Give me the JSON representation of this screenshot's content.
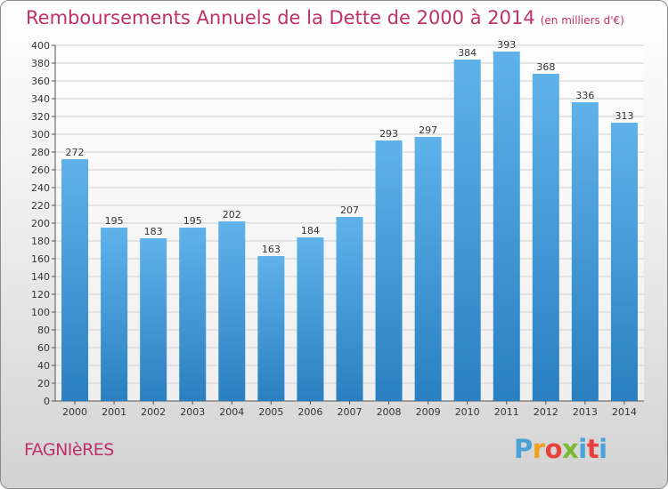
{
  "header": {
    "title": "Remboursements Annuels de la Dette de 2000 à 2014",
    "subtitle": "(en milliers d'€)"
  },
  "footer": {
    "town": "FAGNIèRES",
    "logo": [
      "P",
      "r",
      "o",
      "x",
      "i",
      "t",
      "i"
    ]
  },
  "colors": {
    "title": "#c0306a",
    "bar_light": "#5fb2ea",
    "bar_dark": "#2a7fc0",
    "grid": "#cfcfcf",
    "axis": "#555555"
  },
  "chart_data": {
    "type": "bar",
    "categories": [
      "2000",
      "2001",
      "2002",
      "2003",
      "2004",
      "2005",
      "2006",
      "2007",
      "2008",
      "2009",
      "2010",
      "2011",
      "2012",
      "2013",
      "2014"
    ],
    "values": [
      272,
      195,
      183,
      195,
      202,
      163,
      184,
      207,
      293,
      297,
      384,
      393,
      368,
      336,
      313
    ],
    "title": "Remboursements Annuels de la Dette de 2000 à 2014",
    "xlabel": "",
    "ylabel": "",
    "ylim": [
      0,
      400
    ],
    "yticks": [
      0,
      20,
      40,
      60,
      80,
      100,
      120,
      140,
      160,
      180,
      200,
      220,
      240,
      260,
      280,
      300,
      320,
      340,
      360,
      380,
      400
    ],
    "grid": true,
    "data_labels": true
  }
}
